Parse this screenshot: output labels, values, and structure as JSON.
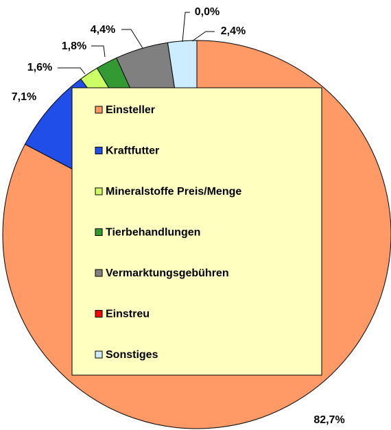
{
  "chart_data": {
    "type": "pie",
    "categories": [
      "Einsteller",
      "Kraftfutter",
      "Mineralstoffe Preis/Menge",
      "Tierbehandlungen",
      "Vermarktungsgebühren",
      "Einstreu",
      "Sonstiges"
    ],
    "values": [
      82.7,
      7.1,
      1.6,
      1.8,
      4.4,
      0.0,
      2.4
    ],
    "value_labels": [
      "82,7%",
      "7,1%",
      "1,6%",
      "1,8%",
      "4,4%",
      "0,0%",
      "2,4%"
    ],
    "colors": [
      "#ff9966",
      "#1f4fe8",
      "#ccff66",
      "#339933",
      "#808080",
      "#ff0000",
      "#ccecff"
    ],
    "legend": "inside"
  }
}
